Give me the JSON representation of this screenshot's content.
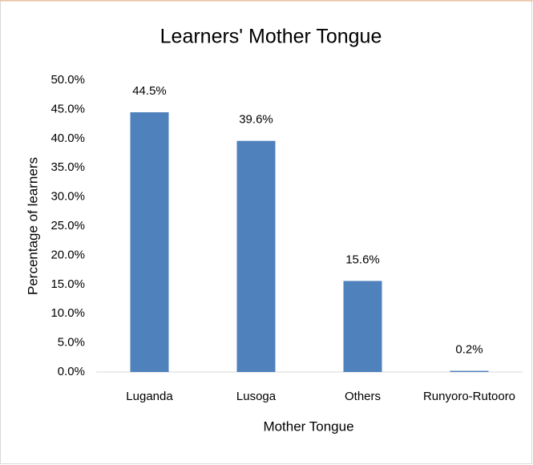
{
  "chart_data": {
    "type": "bar",
    "title": "Learners' Mother Tongue",
    "x_label": "Mother Tongue",
    "y_label": "Percentage of learners",
    "categories": [
      "Luganda",
      "Lusoga",
      "Others",
      "Runyoro-Rutooro"
    ],
    "values": [
      44.5,
      39.6,
      15.6,
      0.2
    ],
    "value_labels": [
      "44.5%",
      "39.6%",
      "15.6%",
      "0.2%"
    ],
    "color": "#4f81bd",
    "ylim": [
      0,
      50
    ],
    "yticks": [
      {
        "value": 0,
        "label": "0.0%"
      },
      {
        "value": 5,
        "label": "5.0%"
      },
      {
        "value": 10,
        "label": "10.0%"
      },
      {
        "value": 15,
        "label": "15.0%"
      },
      {
        "value": 20,
        "label": "20.0%"
      },
      {
        "value": 25,
        "label": "25.0%"
      },
      {
        "value": 30,
        "label": "30.0%"
      },
      {
        "value": 35,
        "label": "35.0%"
      },
      {
        "value": 40,
        "label": "40.0%"
      },
      {
        "value": 45,
        "label": "45.0%"
      },
      {
        "value": 50,
        "label": "50.0%"
      }
    ],
    "grid": false
  }
}
